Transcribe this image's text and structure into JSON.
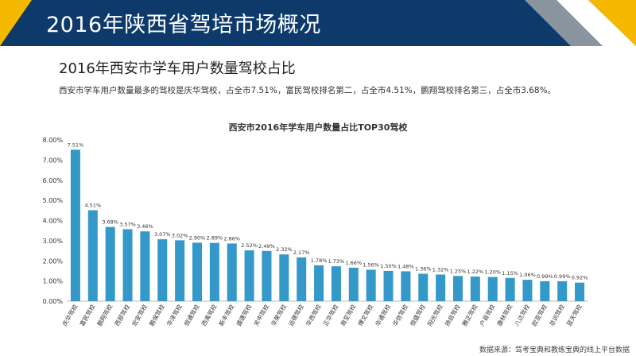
{
  "header": {
    "title": "2016年陕西省驾培市场概况"
  },
  "section": {
    "subtitle": "2016年西安市学车用户数量驾校占比",
    "description": "西安市学车用户数量最多的驾校是庆华驾校，占全市7.51%，富民驾校排名第二，占全市4.51%，鹏翔驾校排名第三，占全市3.68%。"
  },
  "source": "数据来源：驾考宝典和教练宝典的线上平台数据",
  "colors": {
    "header_bg": "#0d3a6b",
    "accent_yellow": "#f5b800",
    "accent_gray": "#8a949e",
    "bar": "#3499c9"
  },
  "chart_data": {
    "type": "bar",
    "title": "西安市2016年学车用户数量占比TOP30驾校",
    "xlabel": "",
    "ylabel": "",
    "ylim": [
      0,
      8
    ],
    "yticks": [
      "0.00%",
      "1.00%",
      "2.00%",
      "3.00%",
      "4.00%",
      "5.00%",
      "6.00%",
      "7.00%",
      "8.00%"
    ],
    "grid": false,
    "categories": [
      "庆华驾校",
      "富民驾校",
      "鹏翔驾校",
      "西部驾校",
      "宏安驾校",
      "鹏保驾校",
      "华泽驾校",
      "恒通驾校",
      "西禹驾校",
      "新丰驾校",
      "盛唐驾校",
      "关中驾校",
      "华荣驾校",
      "运德驾校",
      "华西驾校",
      "正华驾校",
      "周至驾校",
      "博文驾校",
      "华通驾校",
      "华信驾校",
      "恒盛驾校",
      "阳光驾校",
      "扬启驾校",
      "腾正驾校",
      "户县驾校",
      "康林驾校",
      "八达驾校",
      "欧亚驾校",
      "总训驾校",
      "蓝天驾校"
    ],
    "values": [
      7.51,
      4.51,
      3.68,
      3.57,
      3.46,
      3.07,
      3.02,
      2.9,
      2.89,
      2.86,
      2.52,
      2.49,
      2.32,
      2.17,
      1.78,
      1.73,
      1.66,
      1.56,
      1.5,
      1.48,
      1.36,
      1.32,
      1.25,
      1.22,
      1.2,
      1.15,
      1.06,
      0.99,
      0.99,
      0.92
    ],
    "value_labels": [
      "7.51%",
      "4.51%",
      "3.68%",
      "3.57%",
      "3.46%",
      "3.07%",
      "3.02%",
      "2.90%",
      "2.89%",
      "2.86%",
      "2.52%",
      "2.49%",
      "2.32%",
      "2.17%",
      "1.78%",
      "1.73%",
      "1.66%",
      "1.56%",
      "1.50%",
      "1.48%",
      "1.36%",
      "1.32%",
      "1.25%",
      "1.22%",
      "1.20%",
      "1.15%",
      "1.06%",
      "0.99%",
      "0.99%",
      "0.92%"
    ]
  }
}
